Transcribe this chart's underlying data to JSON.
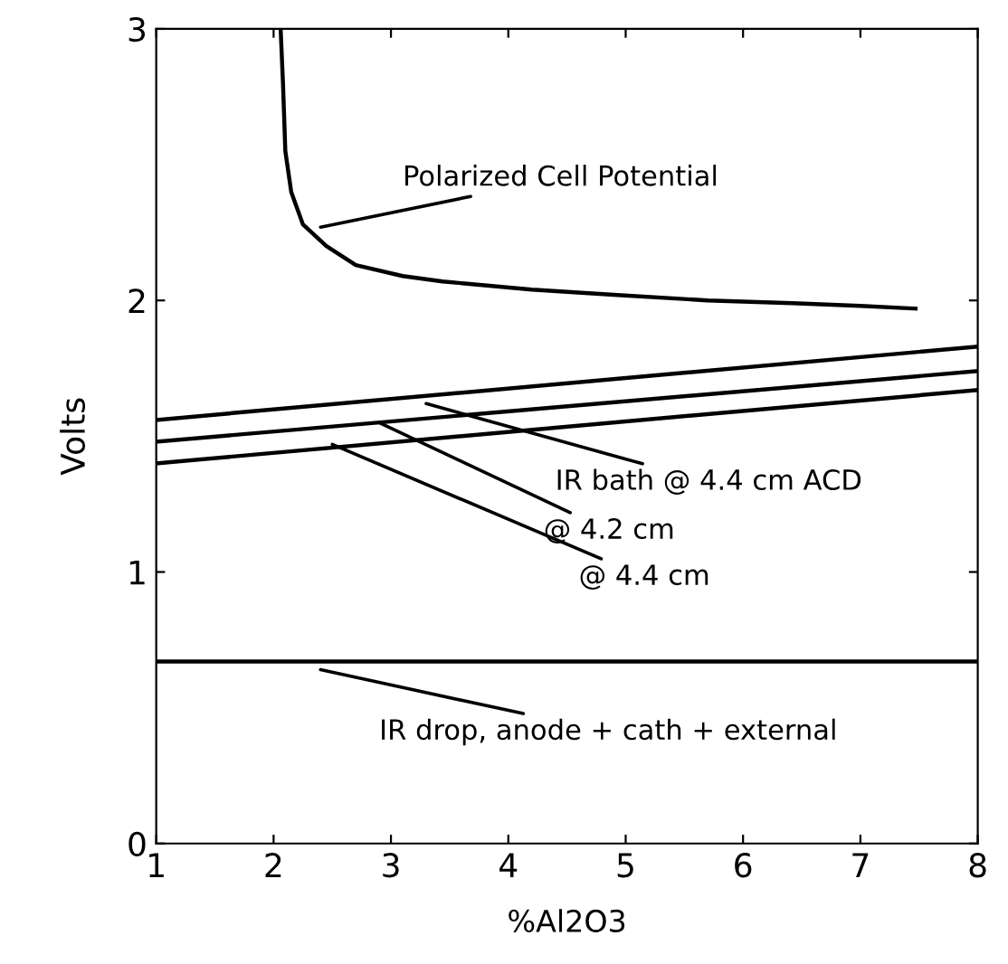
{
  "chart_data": {
    "type": "line",
    "xlabel": "%Al2O3",
    "ylabel": "Volts",
    "xlim": [
      1,
      8
    ],
    "ylim": [
      0,
      3
    ],
    "xticks": [
      1,
      2,
      3,
      4,
      5,
      6,
      7,
      8
    ],
    "yticks": [
      0,
      1,
      2,
      3
    ],
    "grid": false,
    "legend": false,
    "marker": "none",
    "line_style": "solid",
    "series": [
      {
        "color": "#000000",
        "x": [
          2.06,
          2.08,
          2.1,
          2.15,
          2.25,
          2.45,
          2.7,
          3.1,
          3.44,
          4.2,
          4.93,
          5.7,
          6.42,
          7.0,
          7.47
        ],
        "values": [
          3.0,
          2.8,
          2.55,
          2.4,
          2.28,
          2.2,
          2.13,
          2.09,
          2.07,
          2.04,
          2.02,
          2.0,
          1.99,
          1.98,
          1.97
        ]
      },
      {
        "color": "#000000",
        "x": [
          1,
          8
        ],
        "values": [
          1.56,
          1.83
        ]
      },
      {
        "color": "#000000",
        "x": [
          1,
          8
        ],
        "values": [
          1.48,
          1.74
        ]
      },
      {
        "color": "#000000",
        "x": [
          1,
          8
        ],
        "values": [
          1.4,
          1.67
        ]
      },
      {
        "color": "#000000",
        "x": [
          1,
          8
        ],
        "values": [
          0.67,
          0.67
        ]
      }
    ],
    "annotations": [
      {
        "text": "Polarized Cell Potential",
        "x": 2.4,
        "y": 2.27
      },
      {
        "text": "IR bath @ 4.4 cm ACD",
        "x": 3.3,
        "y": 1.62
      },
      {
        "text": "@ 4.2 cm",
        "x": 2.9,
        "y": 1.55
      },
      {
        "text": "@ 4.4 cm",
        "x": 2.5,
        "y": 1.47
      },
      {
        "text": "IR drop, anode + cath + external",
        "x": 2.4,
        "y": 0.64
      }
    ]
  }
}
